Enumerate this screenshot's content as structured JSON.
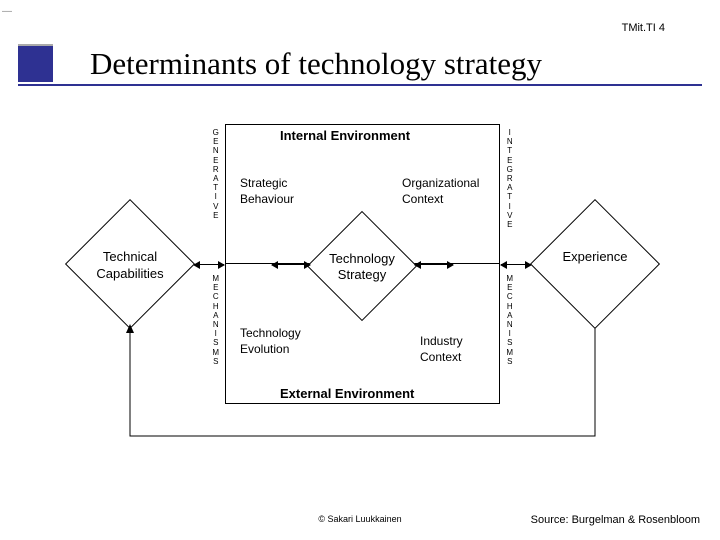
{
  "header": {
    "code": "TMit.TI 4",
    "title": "Determinants of technology strategy",
    "bar_color": "#2e3192"
  },
  "diagram": {
    "center_diamond": "Technology\nStrategy",
    "left_diamond": "Technical\nCapabilities",
    "right_diamond": "Experience",
    "env_top": "Internal Environment",
    "env_bottom": "External Environment",
    "quad_tl": "Strategic\nBehaviour",
    "quad_tr": "Organizational\nContext",
    "quad_bl": "Technology\nEvolution",
    "quad_br": "Industry\nContext",
    "vlabel_top_text": "GENERATIVE",
    "vlabel_bot_text": "MECHANISMS",
    "vlabel_top_right": "INTEGRATIVE",
    "colors": {
      "line": "#000000",
      "bg": "#ffffff"
    }
  },
  "footer": {
    "copyright": "© Sakari Luukkainen",
    "source": "Source: Burgelman & Rosenbloom"
  }
}
